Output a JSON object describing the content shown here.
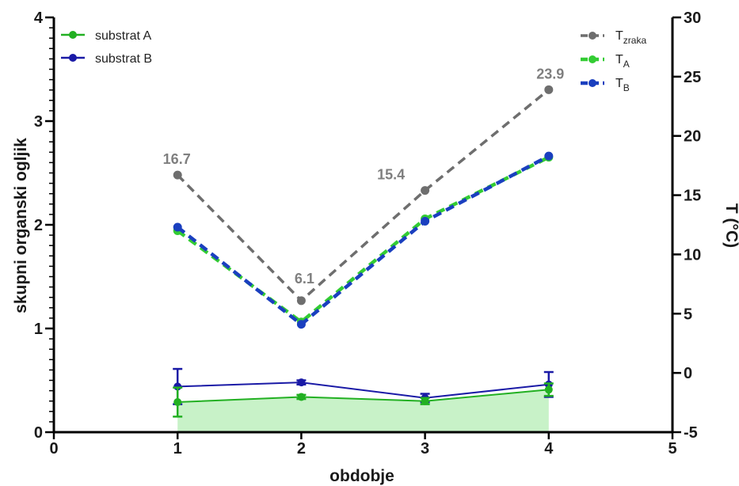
{
  "chart_data": {
    "type": "line",
    "xlabel": "obdobje",
    "ylabel_left": "skupni organski ogljik",
    "ylabel_right": "T (°C)",
    "xlim": [
      0,
      5
    ],
    "ylim_left": [
      0,
      4
    ],
    "ylim_right": [
      -5,
      30
    ],
    "x_ticks": [
      "0",
      "1",
      "2",
      "3",
      "4",
      "5"
    ],
    "y_ticks_left": [
      "0",
      "1",
      "2",
      "3",
      "4"
    ],
    "y_ticks_right": [
      "-5",
      "0",
      "5",
      "10",
      "15",
      "20",
      "25",
      "30"
    ],
    "grid": false,
    "legend_left": "top-left",
    "legend_right": "top-right",
    "series_left": [
      {
        "name": "substrat A",
        "color": "#22b022",
        "fill": "#c8f2c8",
        "x": [
          1,
          2,
          3,
          4
        ],
        "y": [
          0.29,
          0.34,
          0.3,
          0.41
        ],
        "err": [
          0.14,
          0.02,
          0.03,
          0.06
        ]
      },
      {
        "name": "substrat B",
        "color": "#1a1aa6",
        "x": [
          1,
          2,
          3,
          4
        ],
        "y": [
          0.44,
          0.48,
          0.33,
          0.46
        ],
        "err": [
          0.17,
          0.02,
          0.04,
          0.12
        ]
      }
    ],
    "series_right": [
      {
        "name_main": "T",
        "name_sub": "zraka",
        "color": "#6e6e6e",
        "x": [
          1,
          2,
          3,
          4
        ],
        "y": [
          16.7,
          6.1,
          15.4,
          23.9
        ],
        "labels": [
          "16.7",
          "6.1",
          "15.4",
          "23.9"
        ]
      },
      {
        "name_main": "T",
        "name_sub": "A",
        "color": "#33cc33",
        "x": [
          1,
          2,
          3,
          4
        ],
        "y": [
          12.0,
          4.3,
          13.0,
          18.2
        ]
      },
      {
        "name_main": "T",
        "name_sub": "B",
        "color": "#1a3fbf",
        "x": [
          1,
          2,
          3,
          4
        ],
        "y": [
          12.3,
          4.1,
          12.8,
          18.3
        ]
      }
    ]
  }
}
